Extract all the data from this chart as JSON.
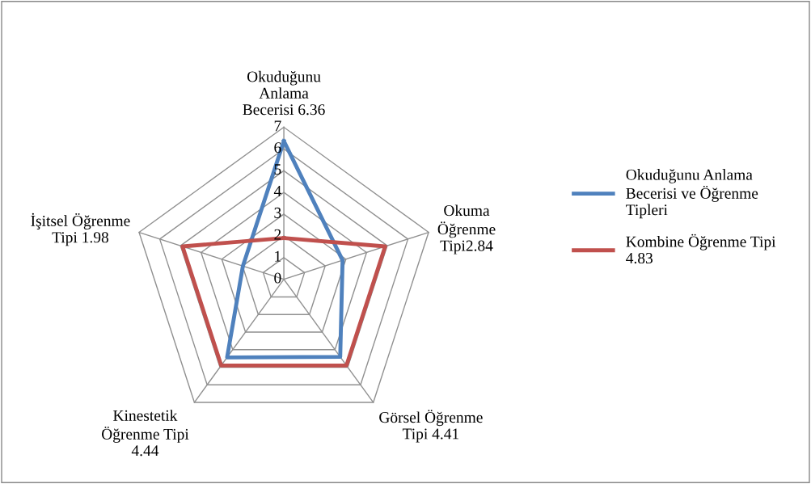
{
  "chart_data": {
    "type": "radar",
    "categories": [
      "Okuduğunu\nAnlama\nBecerisi 6.36",
      "Okuma\nÖğrenme\nTipi2.84",
      "Görsel Öğrenme\nTipi 4.41",
      "Kinestetik\nÖğrenme Tipi\n4.44",
      "İşitsel Öğrenme\nTipi 1.98"
    ],
    "series": [
      {
        "name": "Okuduğunu Anlama\nBecerisi ve Öğrenme\nTipleri",
        "color": "#4f81bd",
        "values": [
          6.36,
          2.84,
          4.41,
          4.44,
          1.98
        ]
      },
      {
        "name": "Kombine Öğrenme Tipi\n4.83",
        "color": "#c0504d",
        "values": [
          1.9,
          4.9,
          4.9,
          4.9,
          4.9
        ]
      }
    ],
    "ylim": [
      0,
      7
    ],
    "yticks": [
      0,
      1,
      2,
      3,
      4,
      5,
      6,
      7
    ],
    "grid": true,
    "legend": "right"
  }
}
